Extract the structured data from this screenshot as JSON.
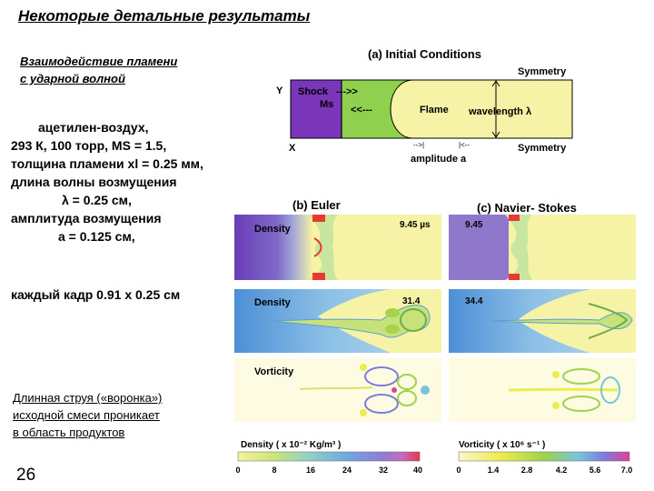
{
  "slide": {
    "title": "Некоторые детальные результаты",
    "subtitle_line1": "Взаимодействие пламени",
    "subtitle_line2": "с ударной волной",
    "params": [
      "ацетилен-воздух,",
      "293 К, 100 торр,  MS = 1.5,",
      "толщина пламени xl = 0.25 мм,",
      "длина волны возмущения",
      "λ = 0.25 см,",
      "амплитуда возмущения",
      "a = 0.125 см,"
    ],
    "frame_size": "каждый кадр 0.91 x 0.25 см",
    "conclusion": [
      "Длинная струя («воронка»)",
      "исходной смеси проникает",
      "в область продуктов"
    ],
    "page_number": "26"
  },
  "figure": {
    "panel_a_title": "(a) Initial Conditions",
    "symmetry_top": "Symmetry",
    "symmetry_bottom": "Symmetry",
    "axis_y": "Y",
    "axis_x": "X",
    "shock_label": "Shock",
    "ms_label": "Ms",
    "shock_arrow": "--->>",
    "flame_arrow": "<<---",
    "flame_label": "Flame",
    "wavelength_label": "wavelength λ",
    "amplitude_label": "amplitude a",
    "panel_b_title": "(b) Euler",
    "panel_c_title": "(c) Navier- Stokes",
    "row1_label": "Density",
    "row1_time_euler": "9.45 µs",
    "row1_time_ns": "9.45",
    "row2_label": "Density",
    "row2_time_euler": "31.4",
    "row2_time_ns": "34.4",
    "row3_label": "Vorticity",
    "density_colorbar_label": "Density ( x 10⁻² Kg/m³ )",
    "density_ticks": [
      "0",
      "8",
      "16",
      "24",
      "32",
      "40"
    ],
    "vorticity_colorbar_label": "Vorticity ( x 10⁶ s⁻¹ )",
    "vorticity_ticks": [
      "0",
      "1.4",
      "2.8",
      "4.2",
      "5.6",
      "7.0"
    ],
    "colors": {
      "unburned": "#8fd14f",
      "burned": "#f7f3a6",
      "shocked": "#7a36b8",
      "hot": "#e63b2e",
      "vortex_green": "#a8d24a",
      "cool_blue": "#6aaede"
    }
  }
}
